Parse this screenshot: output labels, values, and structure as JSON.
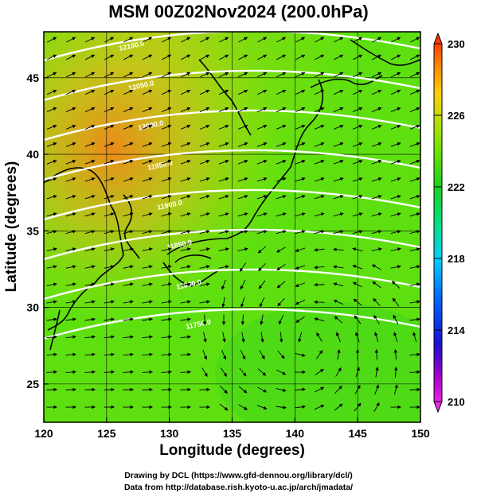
{
  "title": "MSM 00Z02Nov2024 (200.0hPa)",
  "xaxis": {
    "label": "Longitude (degrees)",
    "range": [
      120,
      150
    ],
    "ticks": [
      "120",
      "125",
      "130",
      "135",
      "140",
      "145",
      "150"
    ]
  },
  "yaxis": {
    "label": "Latitude  (degrees)",
    "range": [
      22.5,
      48
    ],
    "ticks": [
      "25",
      "30",
      "35",
      "40",
      "45"
    ]
  },
  "colorbar": {
    "range": [
      210,
      230
    ],
    "tick_labels": [
      "230",
      "226",
      "222",
      "218",
      "214",
      "210"
    ],
    "colors": [
      "#ff33ee",
      "#aa00cc",
      "#1a10d0",
      "#0066ff",
      "#00ccff",
      "#00e080",
      "#20d020",
      "#66e000",
      "#b0e000",
      "#ffd000",
      "#ff8000",
      "#ff2000"
    ]
  },
  "contours": {
    "color": "#ffffff",
    "labels": [
      "12100.0",
      "12050.0",
      "12000.0",
      "11950.0",
      "11900.0",
      "11850.0",
      "11800.0",
      "11750.0"
    ]
  },
  "wind_field": {
    "arrow_color": "#000000",
    "cyclone_center": {
      "lon": 141.0,
      "lat": 27.8
    }
  },
  "credits": [
    "Drawing by DCL (https://www.gfd-dennou.org/library/dcl/)",
    "Data from http://database.rish.kyoto-u.ac.jp/arch/jmadata/"
  ]
}
